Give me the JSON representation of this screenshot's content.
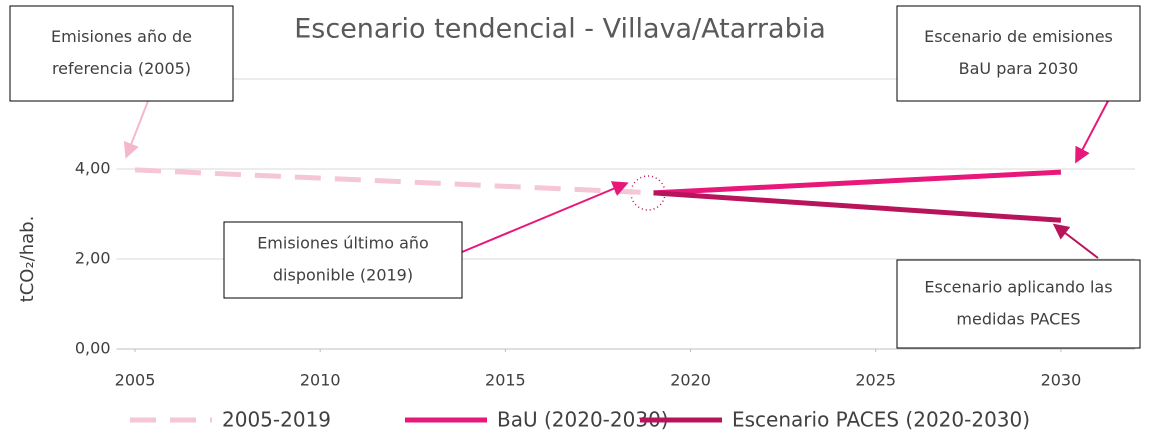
{
  "chart_data": {
    "type": "line",
    "title": "Escenario tendencial - Villava/Atarrabia",
    "y_label": "tCO₂/hab.",
    "xlim": [
      2004.5,
      2032
    ],
    "xticks": [
      2005,
      2010,
      2015,
      2020,
      2025,
      2030
    ],
    "ylim": [
      0,
      6
    ],
    "yticks": [
      {
        "value": 0,
        "label": "0,00"
      },
      {
        "value": 2,
        "label": "2,00"
      },
      {
        "value": 4,
        "label": "4,00"
      }
    ],
    "grid": true,
    "legend": "bottom",
    "series": [
      {
        "name": "2005-2019",
        "color": "#f5c6d3",
        "dashed": true,
        "x": [
          2005,
          2019
        ],
        "values": [
          3.98,
          3.47
        ]
      },
      {
        "name": "BaU (2020-2030)",
        "color": "#e8177a",
        "dashed": false,
        "x": [
          2019,
          2030
        ],
        "values": [
          3.47,
          3.93
        ]
      },
      {
        "name": "Escenario PACES (2020-2030)",
        "color": "#b8145c",
        "dashed": false,
        "x": [
          2019,
          2030
        ],
        "values": [
          3.47,
          2.86
        ]
      }
    ],
    "annotations": [
      {
        "lines": [
          "Emisiones año de",
          "referencia (2005)"
        ]
      },
      {
        "lines": [
          "Escenario de emisiones",
          "BaU para 2030"
        ]
      },
      {
        "lines": [
          "Emisiones último año",
          "disponible (2019)"
        ]
      },
      {
        "lines": [
          "Escenario aplicando las",
          "medidas PACES"
        ]
      }
    ]
  }
}
